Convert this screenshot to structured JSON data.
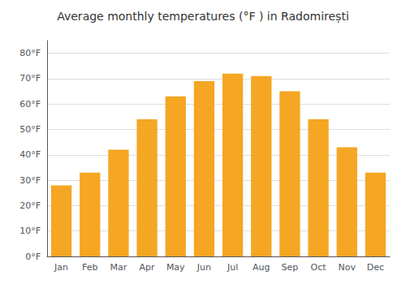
{
  "chart_data": {
    "type": "bar",
    "title": "Average monthly temperatures (°F ) in Radomirești",
    "categories": [
      "Jan",
      "Feb",
      "Mar",
      "Apr",
      "May",
      "Jun",
      "Jul",
      "Aug",
      "Sep",
      "Oct",
      "Nov",
      "Dec"
    ],
    "values": [
      28,
      33,
      42,
      54,
      63,
      69,
      72,
      71,
      65,
      54,
      43,
      33
    ],
    "color": "#F5A623",
    "ylim": [
      0,
      85
    ],
    "yticks": [
      {
        "value": 0,
        "label": "0°F"
      },
      {
        "value": 10,
        "label": "10°F"
      },
      {
        "value": 20,
        "label": "20°F"
      },
      {
        "value": 30,
        "label": "30°F"
      },
      {
        "value": 40,
        "label": "40°F"
      },
      {
        "value": 50,
        "label": "50°F"
      },
      {
        "value": 60,
        "label": "60°F"
      },
      {
        "value": 70,
        "label": "70°F"
      },
      {
        "value": 80,
        "label": "80°F"
      }
    ],
    "grid": true
  }
}
